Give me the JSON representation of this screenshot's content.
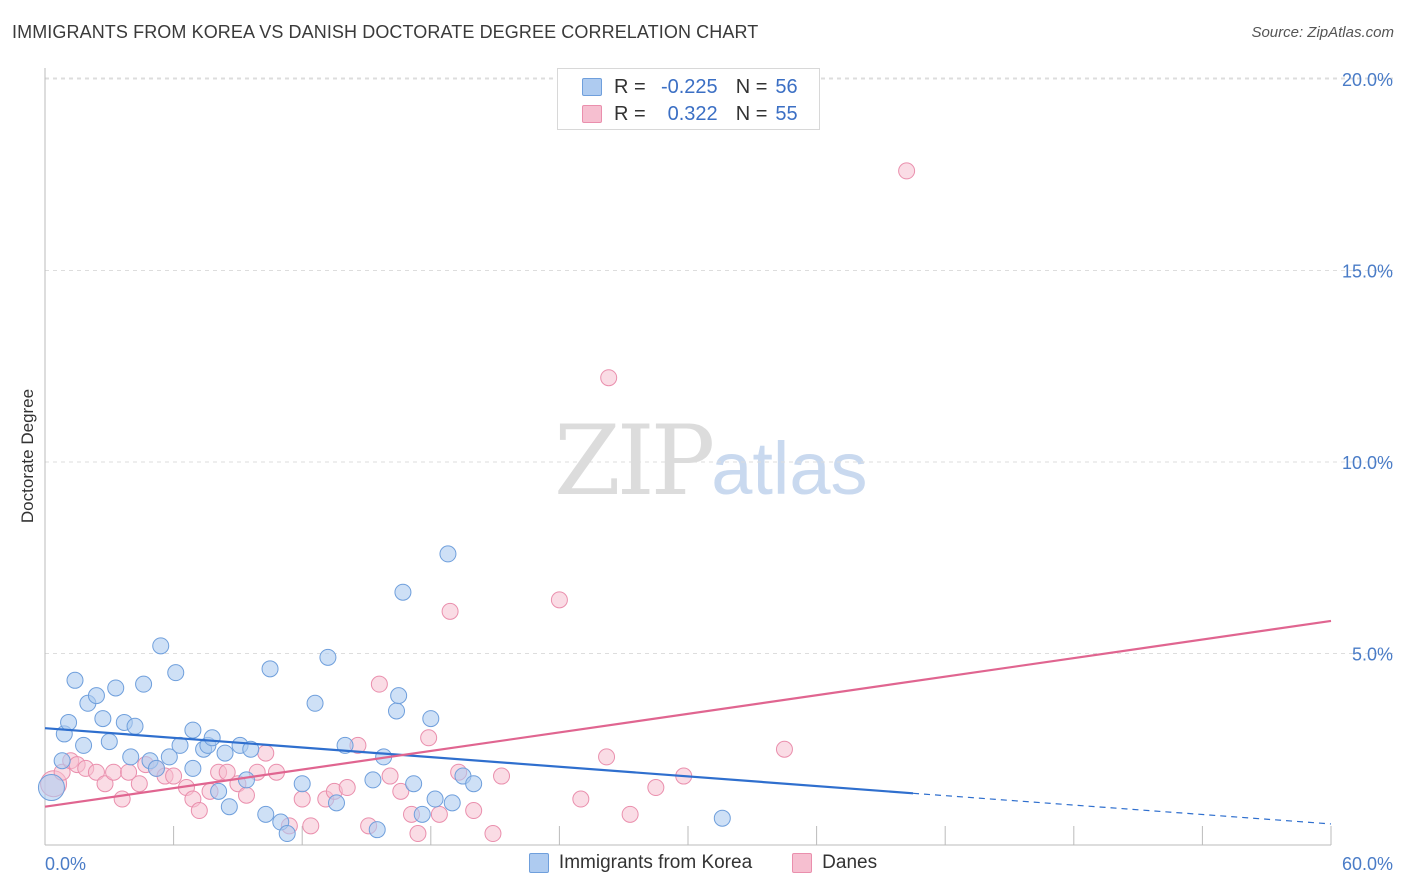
{
  "header": {
    "title": "IMMIGRANTS FROM KOREA VS DANISH DOCTORATE DEGREE CORRELATION CHART",
    "source": "Source: ZipAtlas.com"
  },
  "watermark": {
    "zip": "ZIP",
    "atlas": "atlas"
  },
  "legend": {
    "rows": [
      {
        "r_label": "R =",
        "r_value": "-0.225",
        "n_label": "N =",
        "n_value": "56"
      },
      {
        "r_label": "R =",
        "r_value": "0.322",
        "n_label": "N =",
        "n_value": "55"
      }
    ]
  },
  "bottom_legend": {
    "series1": "Immigrants from Korea",
    "series2": "Danes"
  },
  "colors": {
    "blue_fill": "#aecbf0",
    "blue_stroke": "#6f9fdc",
    "blue_line": "#2f6fce",
    "pink_fill": "#f6bfd0",
    "pink_stroke": "#ea8fad",
    "pink_line": "#e06590",
    "axis_text": "#4a7cc7",
    "grid": "#dddddd"
  },
  "chart_data": {
    "type": "scatter",
    "title": "IMMIGRANTS FROM KOREA VS DANISH DOCTORATE DEGREE CORRELATION CHART",
    "xlabel": "",
    "ylabel": "Doctorate Degree",
    "xlim": [
      0,
      60
    ],
    "ylim": [
      0,
      20.5
    ],
    "x_tick_labels": [
      "0.0%",
      "60.0%"
    ],
    "y_ticks": [
      5,
      10,
      15,
      20
    ],
    "y_tick_labels": [
      "5.0%",
      "10.0%",
      "15.0%",
      "20.0%"
    ],
    "series": [
      {
        "name": "Immigrants from Korea",
        "r": -0.225,
        "n": 56,
        "trend": {
          "x0": 0,
          "y0": 3.05,
          "x1": 40.5,
          "y1": 1.35,
          "dash_x1": 60,
          "dash_y1": 0.55
        },
        "points": [
          [
            0.3,
            1.5
          ],
          [
            0.8,
            2.2
          ],
          [
            0.9,
            2.9
          ],
          [
            1.1,
            3.2
          ],
          [
            1.4,
            4.3
          ],
          [
            1.8,
            2.6
          ],
          [
            2.0,
            3.7
          ],
          [
            2.4,
            3.9
          ],
          [
            2.7,
            3.3
          ],
          [
            3.0,
            2.7
          ],
          [
            3.3,
            4.1
          ],
          [
            3.7,
            3.2
          ],
          [
            4.0,
            2.3
          ],
          [
            4.2,
            3.1
          ],
          [
            4.6,
            4.2
          ],
          [
            4.9,
            2.2
          ],
          [
            5.2,
            2.0
          ],
          [
            5.4,
            5.2
          ],
          [
            5.8,
            2.3
          ],
          [
            6.1,
            4.5
          ],
          [
            6.3,
            2.6
          ],
          [
            6.9,
            3.0
          ],
          [
            6.9,
            2.0
          ],
          [
            7.4,
            2.5
          ],
          [
            7.6,
            2.6
          ],
          [
            7.8,
            2.8
          ],
          [
            8.1,
            1.4
          ],
          [
            8.4,
            2.4
          ],
          [
            8.6,
            1.0
          ],
          [
            9.1,
            2.6
          ],
          [
            9.4,
            1.7
          ],
          [
            9.6,
            2.5
          ],
          [
            10.3,
            0.8
          ],
          [
            10.5,
            4.6
          ],
          [
            11.0,
            0.6
          ],
          [
            11.3,
            0.3
          ],
          [
            12.0,
            1.6
          ],
          [
            12.6,
            3.7
          ],
          [
            13.2,
            4.9
          ],
          [
            13.6,
            1.1
          ],
          [
            14.0,
            2.6
          ],
          [
            15.3,
            1.7
          ],
          [
            15.5,
            0.4
          ],
          [
            15.8,
            2.3
          ],
          [
            16.4,
            3.5
          ],
          [
            16.5,
            3.9
          ],
          [
            16.7,
            6.6
          ],
          [
            17.2,
            1.6
          ],
          [
            17.6,
            0.8
          ],
          [
            18.0,
            3.3
          ],
          [
            18.2,
            1.2
          ],
          [
            18.8,
            7.6
          ],
          [
            19.0,
            1.1
          ],
          [
            19.5,
            1.8
          ],
          [
            20.0,
            1.6
          ],
          [
            31.6,
            0.7
          ]
        ]
      },
      {
        "name": "Danes",
        "r": 0.322,
        "n": 55,
        "trend": {
          "x0": 0,
          "y0": 1.0,
          "x1": 60,
          "y1": 5.85
        },
        "points": [
          [
            0.4,
            1.6
          ],
          [
            0.8,
            1.9
          ],
          [
            1.2,
            2.2
          ],
          [
            1.5,
            2.1
          ],
          [
            1.9,
            2.0
          ],
          [
            2.4,
            1.9
          ],
          [
            2.8,
            1.6
          ],
          [
            3.2,
            1.9
          ],
          [
            3.6,
            1.2
          ],
          [
            3.9,
            1.9
          ],
          [
            4.4,
            1.6
          ],
          [
            4.7,
            2.1
          ],
          [
            5.2,
            2.0
          ],
          [
            5.6,
            1.8
          ],
          [
            6.0,
            1.8
          ],
          [
            6.6,
            1.5
          ],
          [
            6.9,
            1.2
          ],
          [
            7.2,
            0.9
          ],
          [
            7.7,
            1.4
          ],
          [
            8.1,
            1.9
          ],
          [
            8.5,
            1.9
          ],
          [
            9.0,
            1.6
          ],
          [
            9.4,
            1.3
          ],
          [
            9.9,
            1.9
          ],
          [
            10.3,
            2.4
          ],
          [
            10.8,
            1.9
          ],
          [
            11.4,
            0.5
          ],
          [
            12.0,
            1.2
          ],
          [
            12.4,
            0.5
          ],
          [
            13.1,
            1.2
          ],
          [
            13.5,
            1.4
          ],
          [
            14.1,
            1.5
          ],
          [
            14.6,
            2.6
          ],
          [
            15.1,
            0.5
          ],
          [
            15.6,
            4.2
          ],
          [
            16.1,
            1.8
          ],
          [
            16.6,
            1.4
          ],
          [
            17.1,
            0.8
          ],
          [
            17.4,
            0.3
          ],
          [
            17.9,
            2.8
          ],
          [
            18.4,
            0.8
          ],
          [
            18.9,
            6.1
          ],
          [
            19.3,
            1.9
          ],
          [
            20.0,
            0.9
          ],
          [
            20.9,
            0.3
          ],
          [
            21.3,
            1.8
          ],
          [
            24.0,
            6.4
          ],
          [
            25.0,
            1.2
          ],
          [
            26.2,
            2.3
          ],
          [
            26.3,
            12.2
          ],
          [
            27.3,
            0.8
          ],
          [
            28.5,
            1.5
          ],
          [
            29.8,
            1.8
          ],
          [
            34.5,
            2.5
          ],
          [
            40.2,
            17.6
          ]
        ]
      }
    ]
  }
}
